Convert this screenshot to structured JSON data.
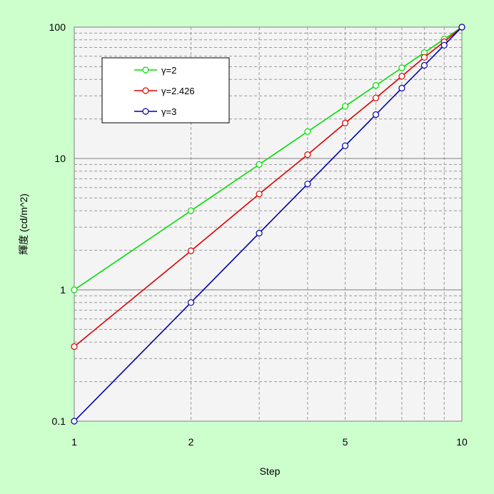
{
  "chart_data": {
    "type": "line",
    "title": "",
    "xlabel": "Step",
    "ylabel": "輝度 (cd/m^2)",
    "xscale": "log",
    "yscale": "log",
    "xlim": [
      1,
      10
    ],
    "ylim": [
      0.1,
      100
    ],
    "xticks": [
      {
        "v": 1,
        "label": "1"
      },
      {
        "v": 2,
        "label": "2"
      },
      {
        "v": 5,
        "label": "5"
      },
      {
        "v": 10,
        "label": "10"
      }
    ],
    "yticks": [
      {
        "v": 0.1,
        "label": "0.1"
      },
      {
        "v": 1,
        "label": "1"
      },
      {
        "v": 10,
        "label": "10"
      },
      {
        "v": 100,
        "label": "100"
      }
    ],
    "grid": true,
    "legend_position": "top-left",
    "x": [
      1,
      2,
      3,
      4,
      5,
      6,
      7,
      8,
      9,
      10
    ],
    "series": [
      {
        "name": "γ=2",
        "color": "#00dd00",
        "values": [
          1,
          4,
          9,
          16,
          25,
          36,
          49,
          64,
          81,
          100
        ]
      },
      {
        "name": "γ=2.426",
        "color": "#dd0000",
        "values": [
          0.37,
          1.98,
          5.37,
          10.7,
          18.6,
          28.9,
          42.3,
          58.9,
          77.4,
          100
        ]
      },
      {
        "name": "γ=3",
        "color": "#0000aa",
        "values": [
          0.1,
          0.8,
          2.7,
          6.4,
          12.5,
          21.6,
          34.3,
          51.2,
          72.9,
          100
        ]
      }
    ]
  }
}
